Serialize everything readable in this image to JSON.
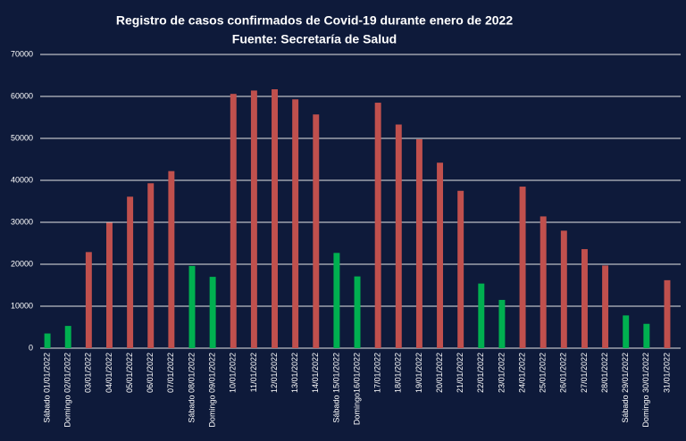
{
  "chart_data": {
    "type": "bar",
    "title": "Registro de casos confirmados de Covid-19 durante enero de 2022",
    "subtitle": "Fuente: Secretaría de Salud",
    "categories": [
      "Sábado 01/01/2022",
      "Domingo 02/01/2022",
      "03/01/2022",
      "04/01/2022",
      "05/01/2022",
      "06/01/2022",
      "07/01/2022",
      "Sábado 08/01/2022",
      "Domingo 09/01/2022",
      "10/01/2022",
      "11/01/2022",
      "12/01/2022",
      "13/01/2022",
      "14/01/2022",
      "Sábado 15/01/2022",
      "Domingo16/01/2022",
      "17/01/2022",
      "18/01/2022",
      "19/01/2022",
      "20/01/2022",
      "21/01/2022",
      "22/01/2022",
      "23/01/2022",
      "24/01/2022",
      "25/01/2022",
      "26/01/2022",
      "27/01/2022",
      "28/01/2022",
      "Sábado 29/01/2022",
      "Domingo 30/01/2022",
      "31/01/2022"
    ],
    "values": [
      3500,
      5300,
      22900,
      29900,
      36100,
      39300,
      42200,
      19600,
      17000,
      60600,
      61400,
      61700,
      59300,
      55700,
      22700,
      17100,
      58500,
      53300,
      49800,
      44200,
      37500,
      15400,
      11500,
      38500,
      31400,
      28000,
      23600,
      19700,
      7800,
      5800,
      16200
    ],
    "colors": [
      "#00b050",
      "#00b050",
      "#c0504d",
      "#c0504d",
      "#c0504d",
      "#c0504d",
      "#c0504d",
      "#00b050",
      "#00b050",
      "#c0504d",
      "#c0504d",
      "#c0504d",
      "#c0504d",
      "#c0504d",
      "#00b050",
      "#00b050",
      "#c0504d",
      "#c0504d",
      "#c0504d",
      "#c0504d",
      "#c0504d",
      "#00b050",
      "#00b050",
      "#c0504d",
      "#c0504d",
      "#c0504d",
      "#c0504d",
      "#c0504d",
      "#00b050",
      "#00b050",
      "#c0504d"
    ],
    "ylim": [
      0,
      70000
    ],
    "yticks": [
      0,
      10000,
      20000,
      30000,
      40000,
      50000,
      60000,
      70000
    ],
    "grid": true
  }
}
